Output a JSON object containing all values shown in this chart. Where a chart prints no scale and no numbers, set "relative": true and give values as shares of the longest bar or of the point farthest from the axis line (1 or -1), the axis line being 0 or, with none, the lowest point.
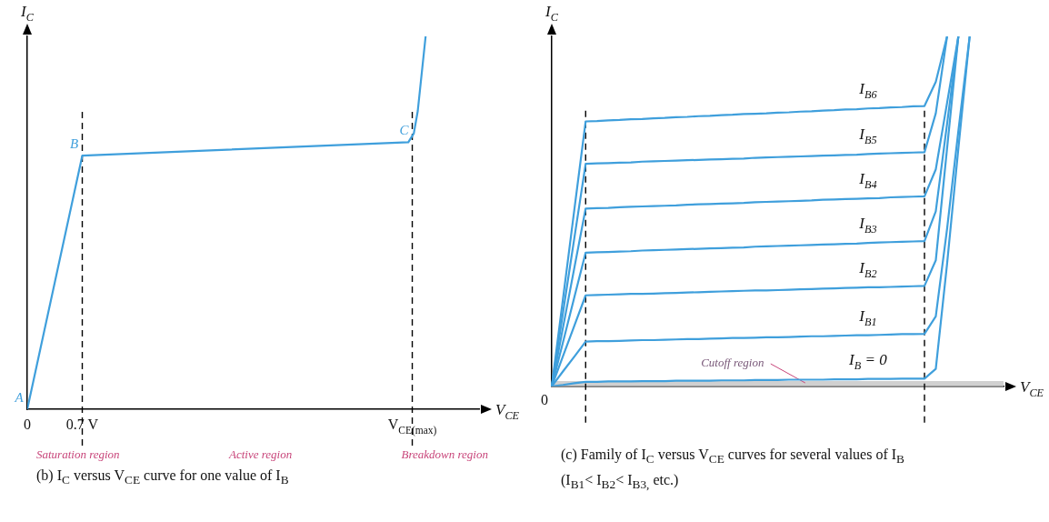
{
  "chart_data": [
    {
      "type": "line",
      "relative": true,
      "xlabel": "V$_{CE}$",
      "ylabel": "I$_{C}$",
      "x": [
        0,
        0.7,
        4.85,
        4.92,
        4.97,
        5.07
      ],
      "series": [
        {
          "color": "#3f9fdc",
          "values": [
            0,
            0.68,
            0.716,
            0.74,
            0.8,
            1
          ]
        }
      ],
      "xlim": [
        0,
        5.75
      ],
      "xticks": [
        0,
        {
          "value": 0.7,
          "label": "0.7 V"
        },
        {
          "value": 4.9,
          "label": "V$_{CE(max)}$"
        }
      ],
      "ref_lines": [
        {
          "axis": "x",
          "value": 0.7,
          "line_style": "dashed",
          "color": "#000000"
        },
        {
          "axis": "x",
          "value": 4.9,
          "line_style": "dashed",
          "color": "#000000"
        }
      ],
      "annotations": [
        {
          "text": "A",
          "x": 0,
          "y": 0
        },
        {
          "text": "B",
          "x": 0.7,
          "y": 0.68
        },
        {
          "text": "C",
          "x": 4.9,
          "y": 0.716
        },
        "Saturation region",
        "Active region",
        "Breakdown region",
        "(b) I$_{C}$ versus V$_{CE}$ curve for one value of I$_{B}$"
      ]
    },
    {
      "type": "line",
      "relative": true,
      "xlabel": "V$_{CE}$",
      "ylabel": "I$_{C}$",
      "categories": [
        null,
        null,
        null,
        null,
        null,
        null,
        null,
        null,
        null,
        null,
        null,
        null,
        null,
        null,
        null,
        null,
        null,
        null,
        null,
        null,
        null,
        null,
        null,
        null,
        null,
        null,
        null,
        null,
        null,
        null,
        null,
        null,
        null,
        null,
        null,
        null,
        null,
        null,
        null,
        null,
        null
      ],
      "series": [
        {
          "name": "I$_{B6}$",
          "color": "#3f9fdc",
          "values": [
            0,
            0.252,
            0.505,
            0.757,
            0.758,
            0.76,
            0.761,
            0.763,
            0.764,
            0.766,
            0.767,
            0.769,
            0.77,
            0.772,
            0.773,
            0.775,
            0.776,
            0.778,
            0.779,
            0.78,
            0.782,
            0.783,
            0.785,
            0.786,
            0.788,
            0.789,
            0.791,
            0.792,
            0.794,
            0.795,
            0.797,
            0.798,
            0.8,
            0.801,
            0.87,
            1,
            null,
            null,
            null,
            null,
            null
          ]
        },
        {
          "name": "I$_{B5}$",
          "color": "#3f9fdc",
          "values": [
            0,
            0.212,
            0.424,
            0.636,
            0.637,
            0.638,
            0.639,
            0.64,
            0.642,
            0.643,
            0.644,
            0.645,
            0.646,
            0.647,
            0.648,
            0.649,
            0.65,
            0.651,
            0.653,
            0.654,
            0.655,
            0.656,
            0.657,
            0.658,
            0.659,
            0.66,
            0.661,
            0.662,
            0.664,
            0.665,
            0.666,
            0.667,
            0.668,
            0.669,
            0.78,
            1,
            null,
            null,
            null,
            null,
            null
          ]
        },
        {
          "name": "I$_{B4}$",
          "color": "#3f9fdc",
          "values": [
            0,
            0.169,
            0.339,
            0.508,
            0.509,
            0.51,
            0.512,
            0.513,
            0.514,
            0.515,
            0.516,
            0.517,
            0.519,
            0.52,
            0.521,
            0.522,
            0.523,
            0.524,
            0.526,
            0.527,
            0.528,
            0.529,
            0.53,
            0.531,
            0.533,
            0.534,
            0.535,
            0.536,
            0.537,
            0.538,
            0.54,
            0.541,
            0.542,
            0.543,
            0.62,
            0.81,
            1,
            null,
            null,
            null,
            null
          ]
        },
        {
          "name": "I$_{B3}$",
          "color": "#3f9fdc",
          "values": [
            0,
            0.127,
            0.255,
            0.382,
            0.383,
            0.384,
            0.385,
            0.386,
            0.388,
            0.389,
            0.39,
            0.391,
            0.392,
            0.393,
            0.394,
            0.395,
            0.396,
            0.397,
            0.399,
            0.4,
            0.401,
            0.402,
            0.403,
            0.404,
            0.405,
            0.406,
            0.407,
            0.408,
            0.41,
            0.411,
            0.412,
            0.413,
            0.414,
            0.415,
            0.5,
            0.75,
            1,
            null,
            null,
            null,
            null
          ]
        },
        {
          "name": "I$_{B2}$",
          "color": "#3f9fdc",
          "values": [
            0,
            0.087,
            0.173,
            0.26,
            0.261,
            0.262,
            0.263,
            0.264,
            0.264,
            0.265,
            0.266,
            0.267,
            0.268,
            0.269,
            0.27,
            0.271,
            0.272,
            0.273,
            0.274,
            0.274,
            0.275,
            0.276,
            0.277,
            0.278,
            0.279,
            0.28,
            0.281,
            0.282,
            0.283,
            0.283,
            0.284,
            0.285,
            0.286,
            0.287,
            0.36,
            0.68,
            1,
            null,
            null,
            null,
            null
          ]
        },
        {
          "name": "I$_{B1}$",
          "color": "#3f9fdc",
          "values": [
            0,
            0.043,
            0.085,
            0.128,
            0.129,
            0.129,
            0.13,
            0.131,
            0.132,
            0.132,
            0.133,
            0.134,
            0.135,
            0.135,
            0.136,
            0.137,
            0.138,
            0.138,
            0.139,
            0.14,
            0.14,
            0.141,
            0.142,
            0.143,
            0.143,
            0.144,
            0.145,
            0.146,
            0.146,
            0.147,
            0.148,
            0.149,
            0.149,
            0.15,
            0.2,
            0.45,
            0.73,
            1,
            null,
            null,
            null
          ]
        },
        {
          "name": "I$_{B}$ = 0",
          "color": "#3f9fdc",
          "values": [
            0,
            0.004,
            0.009,
            0.013,
            0.013,
            0.014,
            0.014,
            0.014,
            0.015,
            0.015,
            0.015,
            0.016,
            0.016,
            0.016,
            0.016,
            0.017,
            0.017,
            0.017,
            0.018,
            0.018,
            0.018,
            0.019,
            0.019,
            0.019,
            0.019,
            0.02,
            0.02,
            0.02,
            0.021,
            0.021,
            0.021,
            0.022,
            0.022,
            0.022,
            0.05,
            0.35,
            0.68,
            1,
            null,
            null,
            null
          ]
        }
      ],
      "bands": [
        {
          "axis": "y",
          "from": 0,
          "to": 0.015,
          "label": "Cutoff region",
          "color": "#d0d0d0"
        }
      ],
      "annotations": [
        "0",
        "(c) Family of I$_{C}$ versus V$_{CE}$ curves for several values of I$_{B}$",
        "(I$_{B1}$< I$_{B2}$< I$_{B3,}$ etc.)"
      ]
    }
  ]
}
